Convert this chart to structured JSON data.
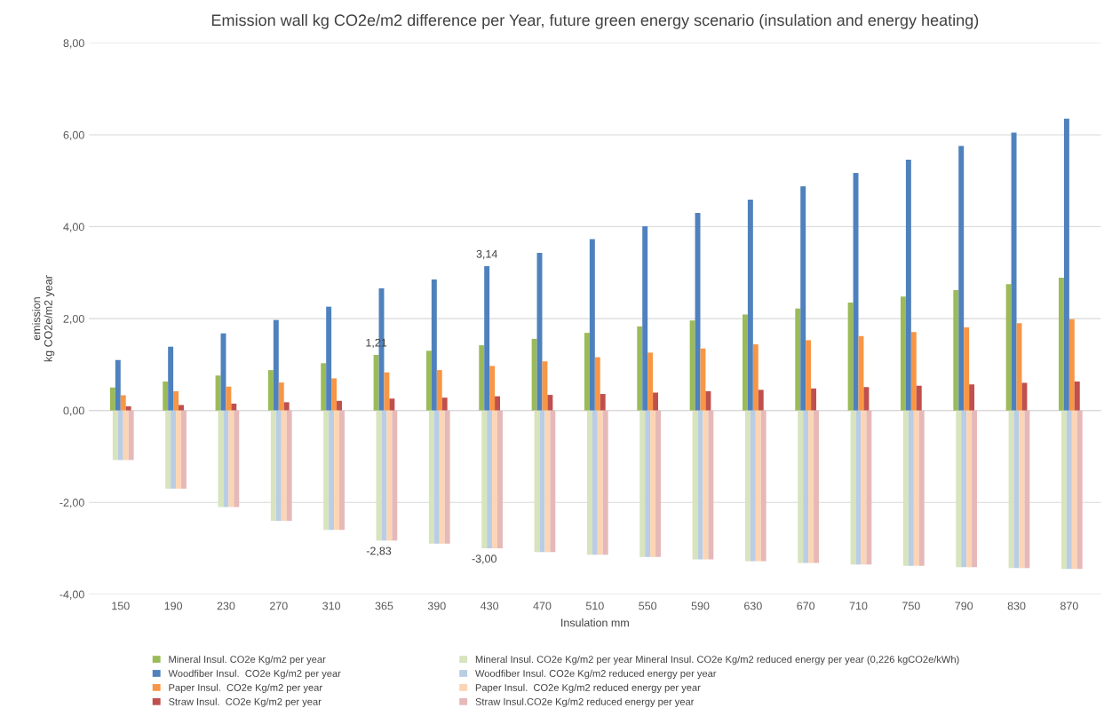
{
  "chart_data": {
    "type": "bar",
    "title": "Emission wall kg CO2e/m2 difference per Year, future green energy scenario (insulation and energy heating)",
    "xlabel": "Insulation mm",
    "ylabel": "emission\nkg CO2e/m2 year",
    "categories": [
      "150",
      "190",
      "230",
      "270",
      "310",
      "365",
      "390",
      "430",
      "470",
      "510",
      "550",
      "590",
      "630",
      "670",
      "710",
      "750",
      "790",
      "830",
      "870"
    ],
    "series": [
      {
        "name": "Mineral Insul. CO2e Kg/m2 per year",
        "color": "#9bbb59",
        "values": [
          0.5,
          0.63,
          0.76,
          0.88,
          1.03,
          1.21,
          1.3,
          1.42,
          1.56,
          1.69,
          1.83,
          1.96,
          2.09,
          2.22,
          2.35,
          2.48,
          2.62,
          2.75,
          2.89
        ],
        "value_labels": [
          null,
          null,
          null,
          null,
          null,
          "1,21",
          null,
          null,
          null,
          null,
          null,
          null,
          null,
          null,
          null,
          null,
          null,
          null,
          null
        ]
      },
      {
        "name": "Woodfiber Insul.  CO2e Kg/m2 per year",
        "color": "#4f81bd",
        "values": [
          1.1,
          1.39,
          1.68,
          1.97,
          2.26,
          2.66,
          2.85,
          3.14,
          3.43,
          3.73,
          4.01,
          4.3,
          4.59,
          4.88,
          5.17,
          5.46,
          5.76,
          6.05,
          6.35
        ],
        "value_labels": [
          null,
          null,
          null,
          null,
          null,
          null,
          null,
          "3,14",
          null,
          null,
          null,
          null,
          null,
          null,
          null,
          null,
          null,
          null,
          null
        ]
      },
      {
        "name": "Paper Insul.  CO2e Kg/m2 per year",
        "color": "#f79646",
        "values": [
          0.33,
          0.42,
          0.52,
          0.61,
          0.7,
          0.83,
          0.88,
          0.97,
          1.07,
          1.16,
          1.26,
          1.35,
          1.44,
          1.53,
          1.62,
          1.71,
          1.81,
          1.9,
          1.99
        ]
      },
      {
        "name": "Straw Insul.  CO2e Kg/m2 per year",
        "color": "#c0504d",
        "values": [
          0.09,
          0.12,
          0.15,
          0.18,
          0.21,
          0.26,
          0.28,
          0.31,
          0.34,
          0.36,
          0.39,
          0.42,
          0.45,
          0.48,
          0.51,
          0.54,
          0.57,
          0.6,
          0.63
        ]
      },
      {
        "name": "Mineral Insul. CO2e Kg/m2 per year Mineral Insul. CO2e Kg/m2 reduced energy per year (0,226 kgCO2e/kWh)",
        "color": "#d7e4bd",
        "values": [
          -1.08,
          -1.7,
          -2.1,
          -2.4,
          -2.6,
          -2.83,
          -2.9,
          -3.0,
          -3.08,
          -3.14,
          -3.19,
          -3.24,
          -3.28,
          -3.32,
          -3.35,
          -3.38,
          -3.41,
          -3.43,
          -3.45
        ],
        "value_labels": [
          null,
          null,
          null,
          null,
          null,
          "-2,83",
          null,
          "-3,00",
          null,
          null,
          null,
          null,
          null,
          null,
          null,
          null,
          null,
          null,
          null
        ]
      },
      {
        "name": "Woodfiber Insul. CO2e Kg/m2 reduced energy per year",
        "color": "#b9cde5",
        "values": [
          -1.08,
          -1.7,
          -2.1,
          -2.4,
          -2.6,
          -2.83,
          -2.9,
          -3.0,
          -3.08,
          -3.14,
          -3.19,
          -3.24,
          -3.28,
          -3.32,
          -3.35,
          -3.38,
          -3.41,
          -3.43,
          -3.45
        ]
      },
      {
        "name": "Paper Insul.  CO2e Kg/m2 reduced energy per year",
        "color": "#fcd5b5",
        "values": [
          -1.08,
          -1.7,
          -2.1,
          -2.4,
          -2.6,
          -2.83,
          -2.9,
          -3.0,
          -3.08,
          -3.14,
          -3.19,
          -3.24,
          -3.28,
          -3.32,
          -3.35,
          -3.38,
          -3.41,
          -3.43,
          -3.45
        ]
      },
      {
        "name": "Straw Insul.CO2e Kg/m2 reduced energy per year",
        "color": "#e6b9b8",
        "values": [
          -1.08,
          -1.7,
          -2.1,
          -2.4,
          -2.6,
          -2.83,
          -2.9,
          -3.0,
          -3.08,
          -3.14,
          -3.19,
          -3.24,
          -3.28,
          -3.32,
          -3.35,
          -3.38,
          -3.41,
          -3.43,
          -3.45
        ]
      }
    ],
    "ylim": [
      -4,
      8
    ],
    "yticks": [
      {
        "value": -4,
        "label": "-4,00"
      },
      {
        "value": -2,
        "label": "-2,00"
      },
      {
        "value": 0,
        "label": "0,00"
      },
      {
        "value": 2,
        "label": "2,00"
      },
      {
        "value": 4,
        "label": "4,00"
      },
      {
        "value": 6,
        "label": "6,00"
      },
      {
        "value": 8,
        "label": "8,00"
      }
    ],
    "grid": "y",
    "legend": "bottom"
  }
}
